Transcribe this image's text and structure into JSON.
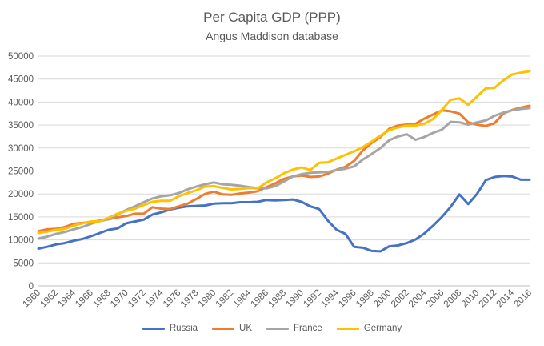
{
  "chart_data": {
    "type": "line",
    "title": "Per Capita GDP (PPP)",
    "subtitle": "Angus Maddison database",
    "xlabel": "",
    "ylabel": "",
    "ylim": [
      0,
      50000
    ],
    "y_ticks": [
      "0",
      "5000",
      "10000",
      "15000",
      "20000",
      "25000",
      "30000",
      "35000",
      "40000",
      "45000",
      "50000"
    ],
    "x_ticks": [
      "1960",
      "1962",
      "1964",
      "1966",
      "1968",
      "1970",
      "1972",
      "1974",
      "1976",
      "1978",
      "1980",
      "1982",
      "1984",
      "1986",
      "1988",
      "1990",
      "1992",
      "1994",
      "1996",
      "1998",
      "2000",
      "2002",
      "2004",
      "2006",
      "2008",
      "2010",
      "2012",
      "2014",
      "2016"
    ],
    "grid": true,
    "legend_position": "bottom",
    "x": [
      1960,
      1961,
      1962,
      1963,
      1964,
      1965,
      1966,
      1967,
      1968,
      1969,
      1970,
      1971,
      1972,
      1973,
      1974,
      1975,
      1976,
      1977,
      1978,
      1979,
      1980,
      1981,
      1982,
      1983,
      1984,
      1985,
      1986,
      1987,
      1988,
      1989,
      1990,
      1991,
      1992,
      1993,
      1994,
      1995,
      1996,
      1997,
      1998,
      1999,
      2000,
      2001,
      2002,
      2003,
      2004,
      2005,
      2006,
      2007,
      2008,
      2009,
      2010,
      2011,
      2012,
      2013,
      2014,
      2015,
      2016
    ],
    "series": [
      {
        "name": "Russia",
        "color": "#4472C4",
        "values": [
          8100,
          8500,
          9000,
          9300,
          9800,
          10200,
          10800,
          11500,
          12200,
          12500,
          13600,
          14000,
          14400,
          15500,
          16000,
          16600,
          17000,
          17300,
          17400,
          17500,
          17900,
          18000,
          18000,
          18200,
          18200,
          18300,
          18700,
          18600,
          18700,
          18800,
          18300,
          17300,
          16700,
          14200,
          12200,
          11300,
          8500,
          8300,
          7600,
          7500,
          8600,
          8800,
          9300,
          10100,
          11400,
          13100,
          15000,
          17200,
          19900,
          17800,
          20000,
          23000,
          23700,
          23900,
          23800,
          23100,
          23100
        ]
      },
      {
        "name": "UK",
        "color": "#ED7D31",
        "values": [
          11900,
          12300,
          12400,
          12800,
          13500,
          13700,
          13900,
          14200,
          14500,
          14900,
          15200,
          15700,
          15700,
          17100,
          16800,
          16700,
          17300,
          17900,
          18900,
          20000,
          20500,
          19900,
          19800,
          20100,
          20300,
          20600,
          21500,
          22300,
          23300,
          23800,
          24000,
          23700,
          23800,
          24400,
          25300,
          25900,
          27200,
          29500,
          31100,
          32400,
          34200,
          34900,
          35100,
          35300,
          36400,
          37300,
          38200,
          38000,
          37500,
          35600,
          35100,
          34800,
          35400,
          37500,
          38300,
          38800,
          39200
        ]
      },
      {
        "name": "France",
        "color": "#A5A5A5",
        "values": [
          10300,
          10700,
          11300,
          11700,
          12300,
          12800,
          13500,
          14100,
          14500,
          15500,
          16500,
          17300,
          18200,
          19000,
          19500,
          19700,
          20200,
          21000,
          21600,
          22100,
          22500,
          22100,
          22000,
          21800,
          21500,
          21300,
          21200,
          21700,
          22700,
          23800,
          24300,
          24600,
          24700,
          24800,
          25200,
          25500,
          26000,
          27500,
          28700,
          30000,
          31700,
          32500,
          33000,
          31800,
          32400,
          33300,
          34000,
          35700,
          35600,
          35100,
          35600,
          36000,
          37000,
          37700,
          38200,
          38500,
          38700
        ]
      },
      {
        "name": "Germany",
        "color": "#FFC000",
        "values": [
          11500,
          11800,
          12200,
          12400,
          13100,
          13600,
          14000,
          14100,
          14800,
          15700,
          16300,
          16800,
          17600,
          18300,
          18500,
          18500,
          19500,
          20200,
          20800,
          21600,
          21700,
          21300,
          21000,
          21100,
          21300,
          21200,
          22500,
          23400,
          24500,
          25300,
          25800,
          25200,
          26800,
          26900,
          27700,
          28500,
          29300,
          30200,
          31400,
          32700,
          33900,
          34500,
          34900,
          34900,
          35300,
          36300,
          38300,
          40500,
          40800,
          39400,
          41200,
          43000,
          43100,
          44700,
          46000,
          46400,
          46700
        ]
      }
    ]
  }
}
